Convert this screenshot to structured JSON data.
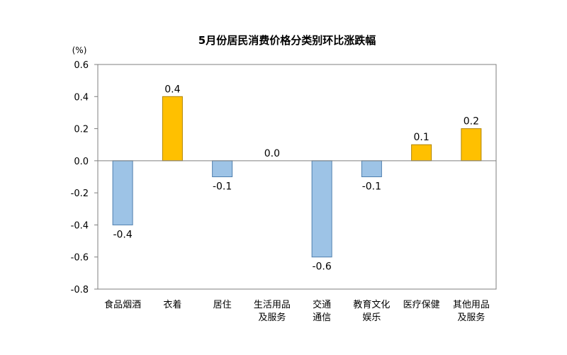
{
  "chart_data": {
    "type": "bar",
    "title": "5月份居民消费价格分类别环比涨跌幅",
    "unit": "(%)",
    "categories": [
      [
        "食品烟酒"
      ],
      [
        "衣着"
      ],
      [
        "居住"
      ],
      [
        "生活用品",
        "及服务"
      ],
      [
        "交通",
        "通信"
      ],
      [
        "教育文化",
        "娱乐"
      ],
      [
        "医疗保健"
      ],
      [
        "其他用品",
        "及服务"
      ]
    ],
    "values": [
      -0.4,
      0.4,
      -0.1,
      0.0,
      -0.6,
      -0.1,
      0.1,
      0.2
    ],
    "data_labels": [
      "-0.4",
      "0.4",
      "-0.1",
      "0.0",
      "-0.6",
      "-0.1",
      "0.1",
      "0.2"
    ],
    "y_ticks": [
      "0.6",
      "0.4",
      "0.2",
      "0.0",
      "-0.2",
      "-0.4",
      "-0.6",
      "-0.8"
    ],
    "ylim": [
      -0.8,
      0.6
    ],
    "grid": false,
    "legend": "none",
    "colors": {
      "positive_fill": "#FFC000",
      "positive_stroke": "#B08400",
      "negative_fill": "#9DC3E6",
      "negative_stroke": "#4F7FAE",
      "axis": "#7F7F7F"
    }
  }
}
